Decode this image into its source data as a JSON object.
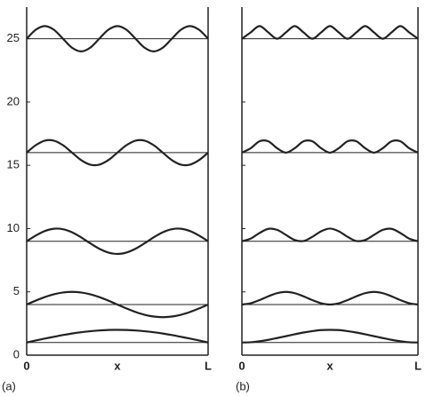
{
  "chart_data": [
    {
      "type": "line",
      "panel_label": "(a)",
      "xlabel": "x",
      "xlim": [
        0,
        1
      ],
      "xticks": [
        {
          "value": 0,
          "label": "0"
        },
        {
          "value": 1,
          "label": "L"
        }
      ],
      "ylim": [
        0,
        27.5
      ],
      "yticks": [
        0,
        5,
        10,
        15,
        20,
        25
      ],
      "ytick_labels": true,
      "levels": [
        1,
        4,
        9,
        16,
        25
      ],
      "color": "#222",
      "x": [
        0,
        0.05,
        0.1,
        0.15,
        0.2,
        0.25,
        0.3,
        0.35,
        0.4,
        0.45,
        0.5,
        0.55,
        0.6,
        0.65,
        0.7,
        0.75,
        0.8,
        0.85,
        0.9,
        0.95,
        1
      ],
      "series": [
        {
          "color": "#222",
          "values": [
            1,
            1.16,
            1.31,
            1.45,
            1.59,
            1.71,
            1.81,
            1.89,
            1.95,
            1.99,
            2,
            1.99,
            1.95,
            1.89,
            1.81,
            1.71,
            1.59,
            1.45,
            1.31,
            1.16,
            1
          ]
        },
        {
          "color": "#222",
          "values": [
            4,
            4.31,
            4.59,
            4.81,
            4.95,
            5,
            4.95,
            4.81,
            4.59,
            4.31,
            4,
            3.69,
            3.41,
            3.19,
            3.05,
            3,
            3.05,
            3.19,
            3.41,
            3.69,
            4
          ]
        },
        {
          "color": "#222",
          "values": [
            9,
            9.45,
            9.81,
            9.99,
            9.95,
            9.71,
            9.31,
            8.84,
            8.41,
            8.11,
            8,
            8.11,
            8.41,
            8.84,
            9.31,
            9.71,
            9.95,
            9.99,
            9.81,
            9.45,
            9
          ]
        },
        {
          "color": "#222",
          "values": [
            16,
            16.59,
            16.95,
            16.95,
            16.59,
            16,
            15.41,
            15.05,
            15.05,
            15.41,
            16,
            16.59,
            16.95,
            16.95,
            16.59,
            16,
            15.41,
            15.05,
            15.05,
            15.41,
            16
          ]
        },
        {
          "color": "#222",
          "values": [
            25,
            25.71,
            26,
            25.71,
            25,
            24.29,
            24,
            24.29,
            25,
            25.71,
            26,
            25.71,
            25,
            24.29,
            24,
            24.29,
            25,
            25.71,
            26,
            25.71,
            25
          ]
        }
      ]
    },
    {
      "type": "line",
      "panel_label": "(b)",
      "xlabel": "x",
      "xlim": [
        0,
        1
      ],
      "xticks": [
        {
          "value": 0,
          "label": "0"
        },
        {
          "value": 1,
          "label": "L"
        }
      ],
      "ylim": [
        0,
        27.5
      ],
      "yticks": [
        0,
        5,
        10,
        15,
        20,
        25
      ],
      "ytick_labels": false,
      "levels": [
        1,
        4,
        9,
        16,
        25
      ],
      "color": "#222",
      "x": [
        0,
        0.05,
        0.1,
        0.15,
        0.2,
        0.25,
        0.3,
        0.35,
        0.4,
        0.45,
        0.5,
        0.55,
        0.6,
        0.65,
        0.7,
        0.75,
        0.8,
        0.85,
        0.9,
        0.95,
        1
      ],
      "series": [
        {
          "color": "#222",
          "values": [
            1,
            1.02,
            1.1,
            1.21,
            1.35,
            1.5,
            1.65,
            1.79,
            1.9,
            1.98,
            2,
            1.98,
            1.9,
            1.79,
            1.65,
            1.5,
            1.35,
            1.21,
            1.1,
            1.02,
            1
          ]
        },
        {
          "color": "#222",
          "values": [
            4,
            4.1,
            4.35,
            4.65,
            4.9,
            5,
            4.9,
            4.65,
            4.35,
            4.1,
            4,
            4.1,
            4.35,
            4.65,
            4.9,
            5,
            4.9,
            4.65,
            4.35,
            4.1,
            4
          ]
        },
        {
          "color": "#222",
          "values": [
            9,
            9.21,
            9.65,
            9.98,
            9.9,
            9.5,
            9.1,
            9.02,
            9.35,
            9.79,
            10,
            9.79,
            9.35,
            9.02,
            9.1,
            9.5,
            9.9,
            9.98,
            9.65,
            9.21,
            9
          ]
        },
        {
          "color": "#222",
          "values": [
            16,
            16.35,
            16.9,
            16.9,
            16.35,
            16,
            16.35,
            16.9,
            16.9,
            16.35,
            16,
            16.35,
            16.9,
            16.9,
            16.35,
            16,
            16.35,
            16.9,
            16.9,
            16.35,
            16
          ]
        },
        {
          "color": "#222",
          "values": [
            25,
            25.5,
            26,
            25.5,
            25,
            25.5,
            26,
            25.5,
            25,
            25.5,
            26,
            25.5,
            25,
            25.5,
            26,
            25.5,
            25,
            25.5,
            26,
            25.5,
            25
          ]
        }
      ]
    }
  ]
}
